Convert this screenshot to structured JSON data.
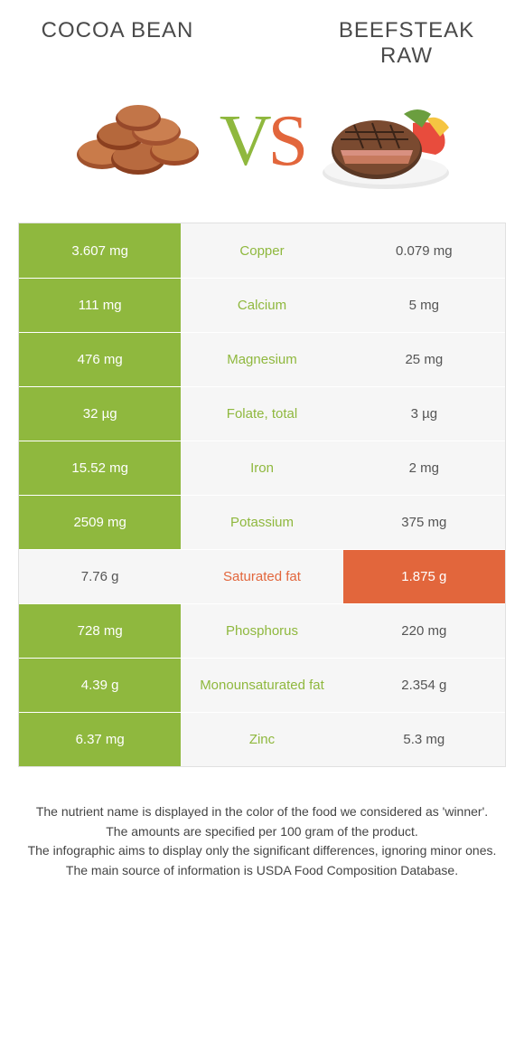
{
  "header": {
    "left_title": "COCOA BEAN",
    "right_title": "BEEFSTEAK RAW",
    "vs_v": "V",
    "vs_s": "S"
  },
  "colors": {
    "left": "#8fb83e",
    "right": "#e2663c",
    "neutral_bg": "#f6f6f6",
    "border": "#e0e0e0"
  },
  "rows": [
    {
      "left": "3.607 mg",
      "label": "Copper",
      "right": "0.079 mg",
      "winner": "left"
    },
    {
      "left": "111 mg",
      "label": "Calcium",
      "right": "5 mg",
      "winner": "left"
    },
    {
      "left": "476 mg",
      "label": "Magnesium",
      "right": "25 mg",
      "winner": "left"
    },
    {
      "left": "32 µg",
      "label": "Folate, total",
      "right": "3 µg",
      "winner": "left"
    },
    {
      "left": "15.52 mg",
      "label": "Iron",
      "right": "2 mg",
      "winner": "left"
    },
    {
      "left": "2509 mg",
      "label": "Potassium",
      "right": "375 mg",
      "winner": "left"
    },
    {
      "left": "7.76 g",
      "label": "Saturated fat",
      "right": "1.875 g",
      "winner": "right"
    },
    {
      "left": "728 mg",
      "label": "Phosphorus",
      "right": "220 mg",
      "winner": "left"
    },
    {
      "left": "4.39 g",
      "label": "Monounsaturated fat",
      "right": "2.354 g",
      "winner": "left"
    },
    {
      "left": "6.37 mg",
      "label": "Zinc",
      "right": "5.3 mg",
      "winner": "left"
    }
  ],
  "footer": {
    "l1": "The nutrient name is displayed in the color of the food we considered as 'winner'.",
    "l2": "The amounts are specified per 100 gram of the product.",
    "l3": "The infographic aims to display only the significant differences, ignoring minor ones.",
    "l4": "The main source of information is USDA Food Composition Database."
  }
}
